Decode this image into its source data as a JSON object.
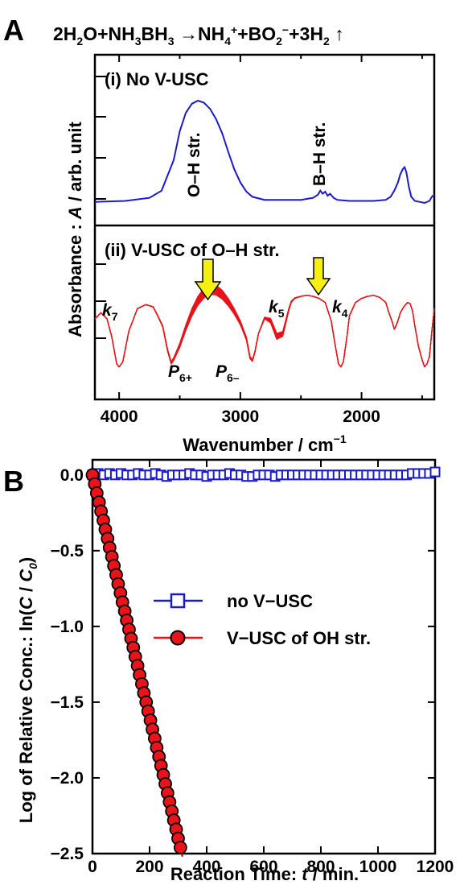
{
  "colors": {
    "blue": "#1a1acc",
    "red": "#e8141a",
    "marker_red": "#e8141a",
    "yellow": "#f6f010",
    "black": "#000000"
  },
  "panelA": {
    "letter": "A",
    "equation": {
      "a": "2H",
      "b": "2",
      "c": "O+NH",
      "d": "3",
      "e": "BH",
      "f": "3",
      "g": " →NH",
      "h": "4",
      "i": "+",
      "j": "+BO",
      "k": "2",
      "l": "−",
      "m": "+3H",
      "n": "2",
      "o": " ↑"
    },
    "ylabel": {
      "a": "Absorbance : ",
      "b": "A",
      "c": " / arb. unit"
    },
    "xlabel": {
      "a": "Wavenumber / cm",
      "b": "−1"
    },
    "sub1_label": "(i) No V-USC",
    "sub2_label": "(ii) V-USC of O–H str.",
    "peak_oh": "O–H str.",
    "peak_bh": "B–H str.",
    "labels": {
      "k7": {
        "a": "k",
        "b": "7"
      },
      "k5": {
        "a": "k",
        "b": "5"
      },
      "k4": {
        "a": "k",
        "b": "4"
      },
      "p6p": {
        "a": "P",
        "b": "6+"
      },
      "p6m": {
        "a": "P",
        "b": "6–"
      }
    }
  },
  "panelB": {
    "letter": "B",
    "ylabel": {
      "a": "Log of Relative Conc.: ln(",
      "b": "C",
      "c": " / ",
      "d": "C",
      "e": "0",
      "f": ")"
    },
    "xlabel": {
      "a": "Reaction Time: ",
      "b": "t",
      "c": "  / min."
    },
    "legend": [
      "no V−USC",
      "V−USC of OH str."
    ]
  },
  "chart_data": [
    {
      "type": "line",
      "panel": "A(i)",
      "xlim": [
        4200,
        1400
      ],
      "x_reversed": true,
      "xticks": [
        "4000",
        "3000",
        "2000"
      ],
      "xtick_values": [
        4000,
        3000,
        2000
      ],
      "series": [
        {
          "x": [
            4200,
            3950,
            3750,
            3650,
            3550,
            3500,
            3450,
            3400,
            3350,
            3300,
            3250,
            3200,
            3150,
            3100,
            3050,
            3000,
            2950,
            2900,
            2800,
            2700,
            2500,
            2400,
            2360,
            2340,
            2320,
            2300,
            2280,
            2260,
            2230,
            2200,
            2100,
            2000,
            1900,
            1800,
            1760,
            1730,
            1700,
            1680,
            1660,
            1645,
            1630,
            1610,
            1590,
            1560,
            1520,
            1480,
            1440,
            1420,
            1400
          ],
          "y": [
            0.01,
            0.02,
            0.05,
            0.12,
            0.42,
            0.7,
            0.88,
            0.97,
            1.0,
            0.98,
            0.92,
            0.82,
            0.68,
            0.5,
            0.33,
            0.2,
            0.11,
            0.06,
            0.03,
            0.03,
            0.03,
            0.05,
            0.08,
            0.12,
            0.09,
            0.11,
            0.07,
            0.09,
            0.05,
            0.03,
            0.02,
            0.02,
            0.02,
            0.03,
            0.06,
            0.12,
            0.2,
            0.28,
            0.33,
            0.35,
            0.3,
            0.16,
            0.06,
            0.02,
            0.01,
            0.0,
            0.02,
            0.06,
            0.08
          ]
        }
      ]
    },
    {
      "type": "line",
      "panel": "A(ii)",
      "xlim": [
        4200,
        1400
      ],
      "x_reversed": true,
      "series": [
        {
          "x": [
            4200,
            4150,
            4100,
            4060,
            4020,
            4000,
            3970,
            3920,
            3850,
            3780,
            3720,
            3680,
            3640,
            3600,
            3570,
            3550,
            3500,
            3450,
            3400,
            3350,
            3300,
            3250,
            3200,
            3150,
            3100,
            3050,
            3000,
            2950,
            2920,
            2900,
            2880,
            2850,
            2800,
            2750,
            2700,
            2650,
            2620,
            2600,
            2580,
            2550,
            2500,
            2450,
            2400,
            2350,
            2300,
            2250,
            2220,
            2190,
            2170,
            2150,
            2120,
            2100,
            2050,
            2000,
            1950,
            1900,
            1850,
            1800,
            1780,
            1750,
            1730,
            1720,
            1700,
            1680,
            1650,
            1620,
            1600,
            1580,
            1560,
            1530,
            1500,
            1480,
            1460,
            1440,
            1420,
            1400
          ],
          "y": [
            0.52,
            0.58,
            0.52,
            0.34,
            0.08,
            0.05,
            0.1,
            0.4,
            0.62,
            0.66,
            0.64,
            0.55,
            0.45,
            0.22,
            0.1,
            0.14,
            0.28,
            0.46,
            0.62,
            0.74,
            0.82,
            0.86,
            0.85,
            0.8,
            0.72,
            0.62,
            0.5,
            0.34,
            0.15,
            0.12,
            0.2,
            0.38,
            0.52,
            0.48,
            0.32,
            0.35,
            0.5,
            0.6,
            0.68,
            0.72,
            0.74,
            0.75,
            0.74,
            0.72,
            0.68,
            0.5,
            0.28,
            0.08,
            0.05,
            0.1,
            0.35,
            0.55,
            0.68,
            0.72,
            0.74,
            0.75,
            0.73,
            0.68,
            0.6,
            0.5,
            0.42,
            0.44,
            0.5,
            0.58,
            0.64,
            0.68,
            0.67,
            0.6,
            0.45,
            0.25,
            0.12,
            0.05,
            0.08,
            0.15,
            0.4,
            0.62
          ]
        }
      ]
    },
    {
      "type": "scatter",
      "panel": "B",
      "xlim": [
        0,
        1200
      ],
      "ylim": [
        -2.5,
        0.1
      ],
      "xticks": [
        "0",
        "200",
        "400",
        "600",
        "800",
        "1000",
        "1200"
      ],
      "xtick_values": [
        0,
        200,
        400,
        600,
        800,
        1000,
        1200
      ],
      "yticks": [
        "0.0",
        "−0.5",
        "−1.0",
        "−1.5",
        "−2.0",
        "−2.5"
      ],
      "ytick_values": [
        0,
        -0.5,
        -1.0,
        -1.5,
        -2.0,
        -2.5
      ],
      "series": [
        {
          "name": "no V−USC",
          "x": [
            0,
            20,
            40,
            60,
            80,
            100,
            120,
            140,
            160,
            180,
            200,
            220,
            240,
            260,
            280,
            300,
            320,
            340,
            360,
            380,
            400,
            420,
            440,
            460,
            480,
            500,
            520,
            540,
            560,
            580,
            600,
            620,
            640,
            660,
            680,
            700,
            720,
            740,
            760,
            780,
            800,
            820,
            840,
            860,
            880,
            900,
            920,
            940,
            960,
            980,
            1000,
            1020,
            1040,
            1060,
            1080,
            1100,
            1120,
            1140,
            1160,
            1180,
            1200
          ],
          "y": [
            0.0,
            0.01,
            0.0,
            0.01,
            0.0,
            0.01,
            0.0,
            0.0,
            0.01,
            0.0,
            0.0,
            0.01,
            0.0,
            -0.01,
            0.0,
            0.0,
            0.0,
            0.01,
            0.0,
            0.0,
            -0.01,
            0.0,
            0.0,
            0.0,
            0.01,
            0.0,
            0.0,
            -0.01,
            -0.01,
            0.0,
            0.0,
            0.0,
            -0.01,
            0.0,
            0.0,
            0.0,
            0.0,
            0.0,
            0.0,
            0.0,
            0.0,
            0.0,
            0.0,
            0.0,
            0.0,
            0.0,
            0.0,
            0.0,
            0.0,
            0.0,
            0.0,
            0.0,
            0.0,
            0.0,
            0.0,
            0.0,
            0.01,
            0.01,
            0.01,
            0.01,
            0.02
          ]
        },
        {
          "name": "V−USC of OH str.",
          "x": [
            0,
            8,
            15,
            23,
            30,
            38,
            45,
            53,
            60,
            68,
            75,
            83,
            90,
            98,
            105,
            113,
            120,
            128,
            135,
            143,
            150,
            158,
            165,
            173,
            180,
            188,
            195,
            203,
            210,
            218,
            225,
            233,
            240,
            248,
            255,
            263,
            270,
            278,
            285,
            293,
            300,
            308
          ],
          "y": [
            0.0,
            -0.06,
            -0.12,
            -0.18,
            -0.24,
            -0.3,
            -0.36,
            -0.42,
            -0.48,
            -0.54,
            -0.6,
            -0.66,
            -0.72,
            -0.78,
            -0.84,
            -0.9,
            -0.96,
            -1.02,
            -1.08,
            -1.14,
            -1.2,
            -1.26,
            -1.32,
            -1.38,
            -1.44,
            -1.5,
            -1.56,
            -1.62,
            -1.68,
            -1.74,
            -1.8,
            -1.86,
            -1.92,
            -1.98,
            -2.04,
            -2.1,
            -2.16,
            -2.22,
            -2.28,
            -2.34,
            -2.4,
            -2.46
          ],
          "fit": {
            "x": [
              0,
              315
            ],
            "y": [
              0.0,
              -2.52
            ]
          }
        }
      ]
    }
  ]
}
